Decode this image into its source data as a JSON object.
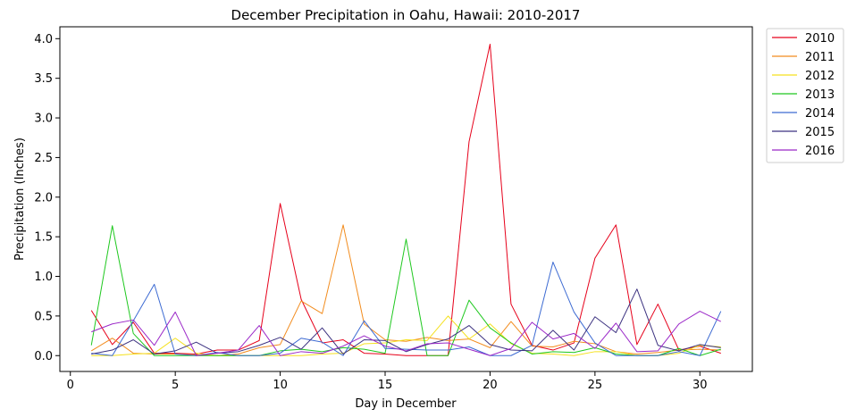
{
  "chart_data": {
    "type": "line",
    "title": "December Precipitation in Oahu, Hawaii: 2010-2017",
    "xlabel": "Day in December",
    "ylabel": "Precipitation (Inches)",
    "xlim": [
      -0.5,
      32.5
    ],
    "ylim": [
      -0.2,
      4.15
    ],
    "x_ticks": [
      0,
      5,
      10,
      15,
      20,
      25,
      30
    ],
    "y_ticks": [
      0.0,
      0.5,
      1.0,
      1.5,
      2.0,
      2.5,
      3.0,
      3.5,
      4.0
    ],
    "x_tick_labels": [
      "0",
      "5",
      "10",
      "15",
      "20",
      "25",
      "30"
    ],
    "y_tick_labels": [
      "0.0",
      "0.5",
      "1.0",
      "1.5",
      "2.0",
      "2.5",
      "3.0",
      "3.5",
      "4.0"
    ],
    "grid": false,
    "legend_position": "outside-top-right",
    "x": [
      1,
      2,
      3,
      4,
      5,
      6,
      7,
      8,
      9,
      10,
      11,
      12,
      13,
      14,
      15,
      16,
      17,
      18,
      19,
      20,
      21,
      22,
      23,
      24,
      25,
      26,
      27,
      28,
      29,
      30,
      31
    ],
    "series": [
      {
        "name": "2010",
        "color": "#e6001a",
        "values": [
          0.57,
          0.14,
          0.42,
          0.03,
          0.03,
          0.02,
          0.07,
          0.07,
          0.19,
          1.92,
          0.71,
          0.16,
          0.2,
          0.03,
          0.02,
          0.0,
          0.0,
          0.0,
          2.7,
          3.93,
          0.65,
          0.13,
          0.07,
          0.16,
          1.23,
          1.65,
          0.14,
          0.65,
          0.07,
          0.12,
          0.03
        ]
      },
      {
        "name": "2011",
        "color": "#f28c1e",
        "values": [
          0.06,
          0.22,
          0.03,
          0.02,
          0.02,
          0.01,
          0.0,
          0.02,
          0.1,
          0.14,
          0.69,
          0.53,
          1.65,
          0.4,
          0.2,
          0.18,
          0.23,
          0.19,
          0.21,
          0.1,
          0.43,
          0.12,
          0.11,
          0.18,
          0.15,
          0.05,
          0.02,
          0.04,
          0.07,
          0.08,
          0.07
        ]
      },
      {
        "name": "2012",
        "color": "#f5e11e",
        "values": [
          0.0,
          0.0,
          0.02,
          0.03,
          0.22,
          0.03,
          0.0,
          0.0,
          0.0,
          0.0,
          0.0,
          0.02,
          0.03,
          0.15,
          0.16,
          0.2,
          0.19,
          0.5,
          0.21,
          0.4,
          0.15,
          0.03,
          0.02,
          0.0,
          0.05,
          0.05,
          0.0,
          0.0,
          0.03,
          0.13,
          0.11
        ]
      },
      {
        "name": "2013",
        "color": "#1ec81e",
        "values": [
          0.13,
          1.64,
          0.28,
          0.0,
          0.0,
          0.0,
          0.0,
          0.0,
          0.0,
          0.06,
          0.08,
          0.05,
          0.1,
          0.08,
          0.03,
          1.47,
          0.0,
          0.0,
          0.7,
          0.35,
          0.16,
          0.02,
          0.05,
          0.04,
          0.1,
          0.02,
          0.0,
          0.0,
          0.09,
          0.0,
          0.08
        ]
      },
      {
        "name": "2014",
        "color": "#3c6ad2",
        "values": [
          0.03,
          0.0,
          0.44,
          0.9,
          0.02,
          0.0,
          0.04,
          0.0,
          0.0,
          0.03,
          0.22,
          0.17,
          0.0,
          0.44,
          0.09,
          0.08,
          0.07,
          0.07,
          0.11,
          0.0,
          0.0,
          0.13,
          1.18,
          0.55,
          0.16,
          0.0,
          0.0,
          0.0,
          0.05,
          0.0,
          0.56
        ]
      },
      {
        "name": "2015",
        "color": "#3c3280",
        "values": [
          0.02,
          0.07,
          0.2,
          0.02,
          0.06,
          0.17,
          0.03,
          0.05,
          0.13,
          0.23,
          0.08,
          0.35,
          0.02,
          0.2,
          0.19,
          0.05,
          0.14,
          0.21,
          0.38,
          0.14,
          0.07,
          0.06,
          0.32,
          0.07,
          0.49,
          0.29,
          0.84,
          0.13,
          0.06,
          0.14,
          0.1
        ]
      },
      {
        "name": "2016",
        "color": "#9b28c8",
        "values": [
          0.3,
          0.4,
          0.45,
          0.13,
          0.55,
          0.0,
          0.03,
          0.07,
          0.38,
          0.0,
          0.05,
          0.03,
          0.12,
          0.25,
          0.12,
          0.06,
          0.15,
          0.16,
          0.08,
          0.0,
          0.09,
          0.42,
          0.21,
          0.28,
          0.09,
          0.41,
          0.05,
          0.06,
          0.4,
          0.56,
          0.43
        ]
      }
    ]
  }
}
